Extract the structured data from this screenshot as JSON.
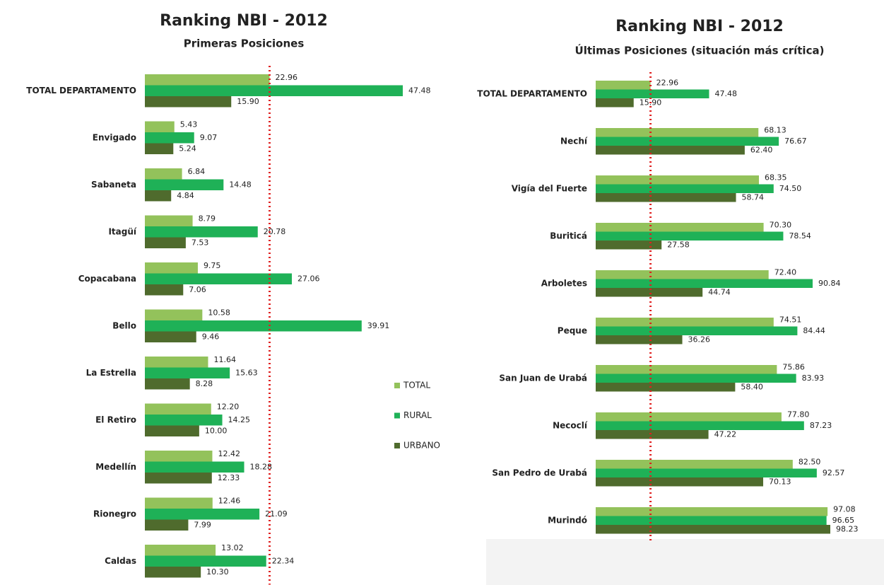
{
  "chart_data": [
    {
      "type": "bar",
      "orientation": "horizontal",
      "title": "Ranking NBI - 2012",
      "subtitle": "Primeras Posiciones",
      "categories": [
        "TOTAL DEPARTAMENTO",
        "Envigado",
        "Sabaneta",
        "Itagüí",
        "Copacabana",
        "Bello",
        "La Estrella",
        "El Retiro",
        "Medellín",
        "Rionegro",
        "Caldas"
      ],
      "series": [
        {
          "name": "TOTAL",
          "color": "#93c25b",
          "values": [
            22.96,
            5.43,
            6.84,
            8.79,
            9.75,
            10.58,
            11.64,
            12.2,
            12.42,
            12.46,
            13.02
          ],
          "value_labels": [
            "22.96",
            "5.43",
            "6.84",
            "8.79",
            "9.75",
            "10.58",
            "11.64",
            "12.20",
            "12.42",
            "12.46",
            "13.02"
          ]
        },
        {
          "name": "RURAL",
          "color": "#1fb157",
          "values": [
            47.48,
            9.07,
            14.48,
            20.78,
            27.06,
            39.91,
            15.63,
            14.25,
            18.28,
            21.09,
            22.34
          ],
          "value_labels": [
            "47.48",
            "9.07",
            "14.48",
            "20.78",
            "27.06",
            "39.91",
            "15.63",
            "14.25",
            "18.28",
            "21.09",
            "22.34"
          ]
        },
        {
          "name": "URBANO",
          "color": "#4f6b2d",
          "values": [
            15.9,
            5.24,
            4.84,
            7.53,
            7.06,
            9.46,
            8.28,
            10,
            12.33,
            7.99,
            10.3
          ],
          "value_labels": [
            "15.90",
            "5.24",
            "4.84",
            "7.53",
            "7.06",
            "9.46",
            "8.28",
            "10.00",
            "12.33",
            "7.99",
            "10.30"
          ]
        }
      ],
      "legend": "right"
    },
    {
      "type": "bar",
      "orientation": "horizontal",
      "title": "Ranking NBI - 2012",
      "subtitle": "Últimas Posiciones (situación más crítica)",
      "categories": [
        "TOTAL DEPARTAMENTO",
        "Nechí",
        "Vigía del Fuerte",
        "Buriticá",
        "Arboletes",
        "Peque",
        "San Juan de Urabá",
        "Necoclí",
        "San Pedro de Urabá",
        "Murindó"
      ],
      "series": [
        {
          "color": "#93c25b",
          "values": [
            22.96,
            68.13,
            68.35,
            70.3,
            72.4,
            74.51,
            75.86,
            77.8,
            82.5,
            97.08
          ],
          "value_labels": [
            "22.96",
            "68.13",
            "68.35",
            "70.30",
            "72.40",
            "74.51",
            "75.86",
            "77.80",
            "82.50",
            "97.08"
          ]
        },
        {
          "color": "#1fb157",
          "values": [
            47.48,
            76.67,
            74.5,
            78.54,
            90.84,
            84.44,
            83.93,
            87.23,
            92.57,
            96.65
          ],
          "value_labels": [
            "47.48",
            "76.67",
            "74.50",
            "78.54",
            "90.84",
            "84.44",
            "83.93",
            "87.23",
            "92.57",
            "96.65"
          ]
        },
        {
          "color": "#4f6b2d",
          "values": [
            15.9,
            62.4,
            58.74,
            27.58,
            44.74,
            36.26,
            58.4,
            47.22,
            70.13,
            98.23
          ],
          "value_labels": [
            "15.90",
            "62.40",
            "58.74",
            "27.58",
            "44.74",
            "36.26",
            "58.40",
            "47.22",
            "70.13",
            "98.23"
          ]
        }
      ]
    }
  ]
}
